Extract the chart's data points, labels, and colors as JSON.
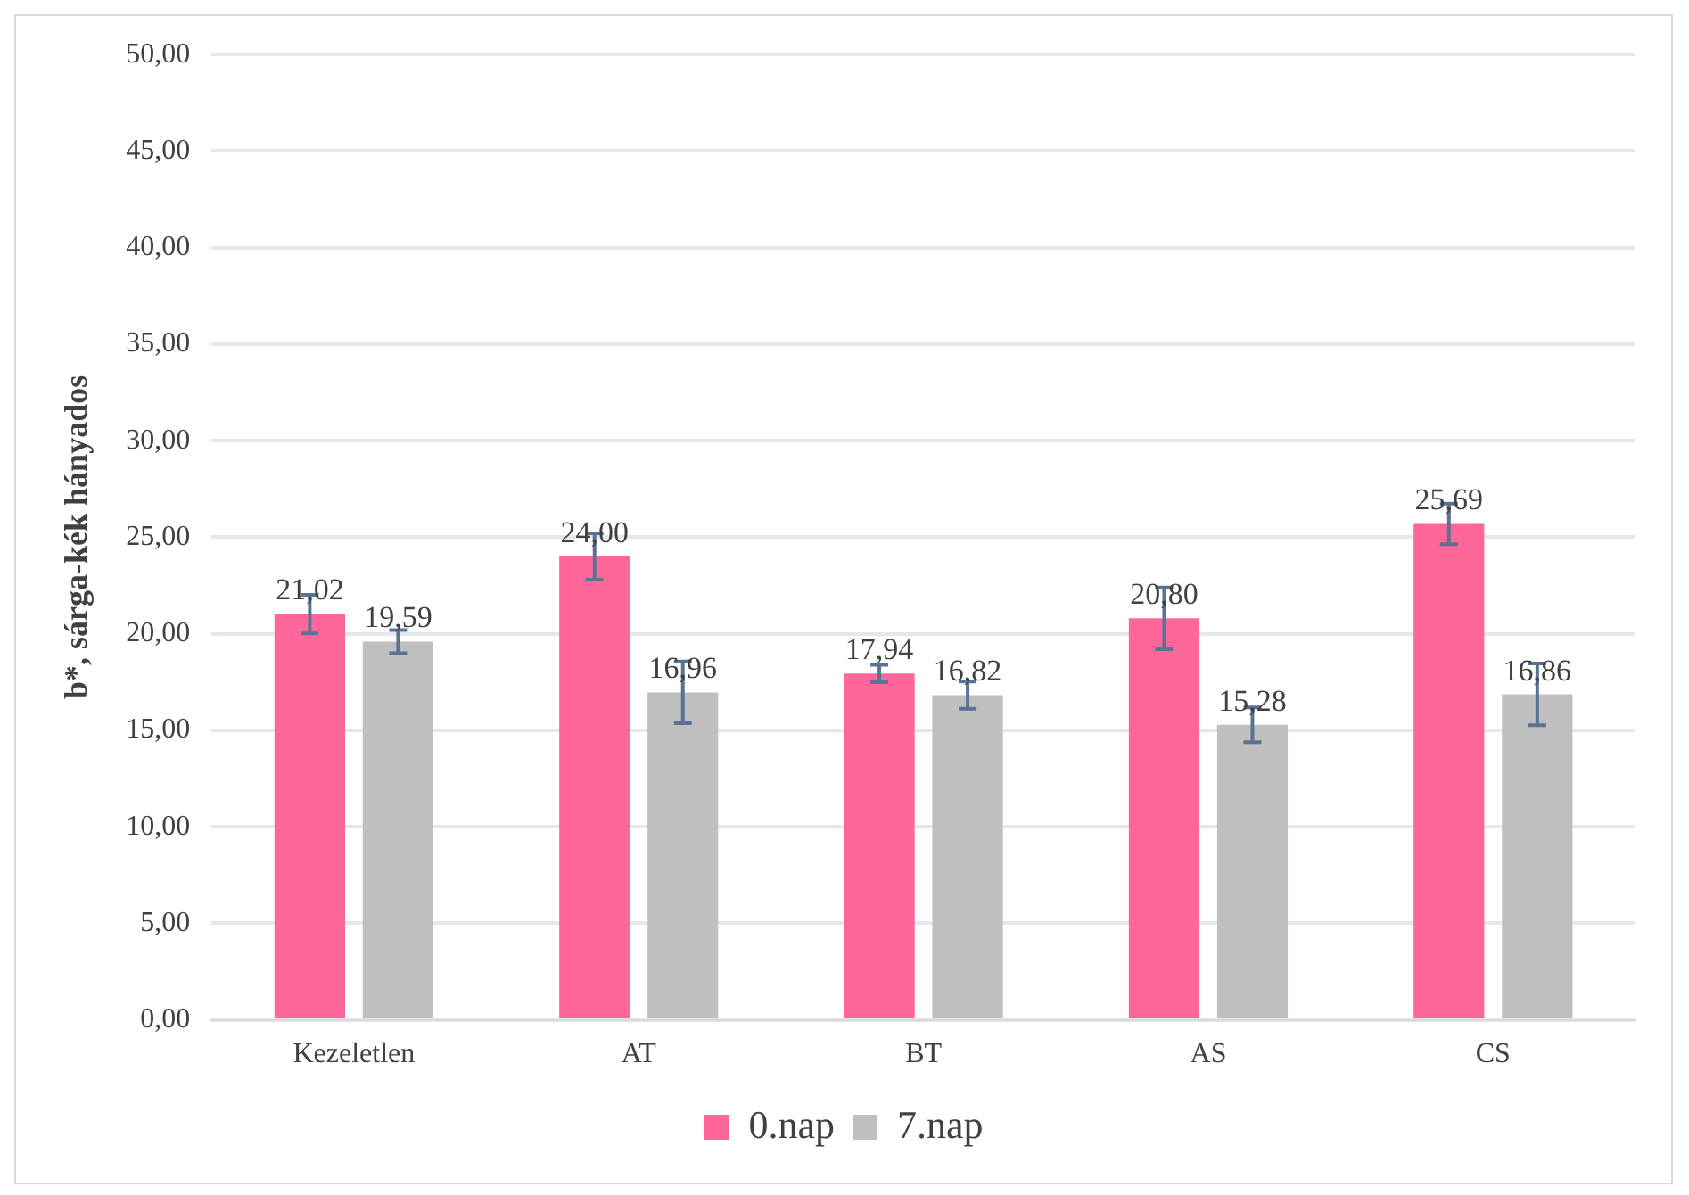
{
  "chart_data": {
    "type": "bar",
    "ylabel": "b*, sárga-kék hányados",
    "categories": [
      "Kezeletlen",
      "AT",
      "BT",
      "AS",
      "CS"
    ],
    "series": [
      {
        "name": "0.nap",
        "color": "#ff6699",
        "values": [
          21.02,
          24.0,
          17.94,
          20.8,
          25.69
        ],
        "errors": [
          1.0,
          1.2,
          0.45,
          1.6,
          1.05
        ],
        "value_labels": [
          "21,02",
          "24,00",
          "17,94",
          "20,80",
          "25,69"
        ]
      },
      {
        "name": "7.nap",
        "color": "#bfbfbf",
        "values": [
          19.59,
          16.96,
          16.82,
          15.28,
          16.86
        ],
        "errors": [
          0.6,
          1.6,
          0.7,
          0.9,
          1.6
        ],
        "value_labels": [
          "19,59",
          "16,96",
          "16,82",
          "15,28",
          "16,86"
        ]
      }
    ],
    "ylim": [
      0,
      50
    ],
    "yticks": [
      {
        "value": 0,
        "label": "0,00"
      },
      {
        "value": 5,
        "label": "5,00"
      },
      {
        "value": 10,
        "label": "10,00"
      },
      {
        "value": 15,
        "label": "15,00"
      },
      {
        "value": 20,
        "label": "20,00"
      },
      {
        "value": 25,
        "label": "25,00"
      },
      {
        "value": 30,
        "label": "30,00"
      },
      {
        "value": 35,
        "label": "35,00"
      },
      {
        "value": 40,
        "label": "40,00"
      },
      {
        "value": 45,
        "label": "45,00"
      },
      {
        "value": 50,
        "label": "50,00"
      }
    ],
    "grid": "y",
    "legend": "bottom"
  }
}
